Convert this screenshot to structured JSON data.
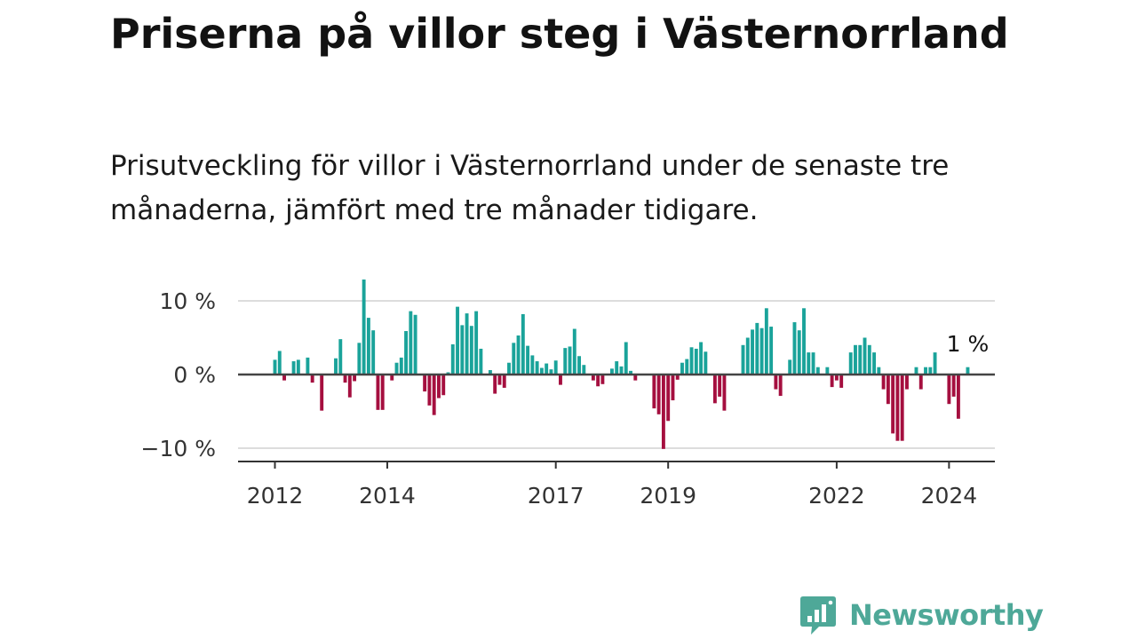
{
  "title": "Priserna på villor steg i Västernorrland",
  "subtitle": "Prisutveckling för villor i Västernorrland under de senaste tre månaderna, jämfört med tre månader tidigare.",
  "brand": "Newsworthy",
  "colors": {
    "positive": "#1aa39a",
    "negative": "#a50f3f",
    "brand": "#4ea898",
    "zero_line": "#444444",
    "grid": "#dddddd"
  },
  "chart_data": {
    "type": "bar",
    "x_unit": "month",
    "start": "2012-01",
    "ylim": [
      -12,
      12
    ],
    "yticks": [
      {
        "value": 10,
        "label": "10 %"
      },
      {
        "value": 0,
        "label": "0 %"
      },
      {
        "value": -10,
        "label": "−10 %"
      }
    ],
    "xticks": [
      {
        "year": 2012,
        "label": "2012"
      },
      {
        "year": 2014,
        "label": "2014"
      },
      {
        "year": 2017,
        "label": "2017"
      },
      {
        "year": 2019,
        "label": "2019"
      },
      {
        "year": 2022,
        "label": "2022"
      },
      {
        "year": 2024,
        "label": "2024"
      }
    ],
    "values": [
      2,
      3.2,
      -0.8,
      0,
      1.8,
      2,
      0,
      2.3,
      -1.1,
      0,
      -4.9,
      0,
      0,
      2.2,
      4.8,
      -1.1,
      -3.1,
      -0.9,
      4.3,
      12.9,
      7.7,
      6,
      -4.8,
      -4.8,
      0,
      -0.8,
      1.6,
      2.3,
      5.9,
      8.6,
      8.1,
      0,
      -2.3,
      -4.2,
      -5.5,
      -3.2,
      -2.8,
      0.3,
      4.1,
      9.2,
      6.7,
      8.3,
      6.6,
      8.6,
      3.5,
      0,
      0.6,
      -2.6,
      -1.4,
      -1.8,
      1.6,
      4.3,
      5.3,
      8.2,
      3.9,
      2.6,
      1.8,
      0.9,
      1.5,
      0.7,
      1.9,
      -1.4,
      3.6,
      3.8,
      6.2,
      2.5,
      1.3,
      0,
      -0.8,
      -1.6,
      -1.3,
      0,
      0.8,
      1.8,
      1.1,
      4.4,
      0.5,
      -0.8,
      0,
      0,
      0,
      -4.6,
      -5.4,
      -10.1,
      -6.3,
      -3.5,
      -0.7,
      1.6,
      2.1,
      3.7,
      3.5,
      4.4,
      3.1,
      0,
      -3.9,
      -3,
      -4.9,
      0,
      0,
      0,
      4,
      5,
      6.1,
      7,
      6.3,
      9,
      6.5,
      -2,
      -2.9,
      0,
      2,
      7.1,
      6,
      9,
      3,
      3,
      1,
      0,
      1,
      -1.7,
      -0.8,
      -1.8,
      0,
      3,
      4,
      4,
      5,
      4,
      3,
      1,
      -2,
      -4,
      -8,
      -9,
      -9,
      -2,
      0,
      1,
      -2,
      1,
      1,
      3,
      0,
      0,
      -4,
      -3,
      -6,
      0,
      1
    ],
    "last_value_label": "1 %"
  }
}
